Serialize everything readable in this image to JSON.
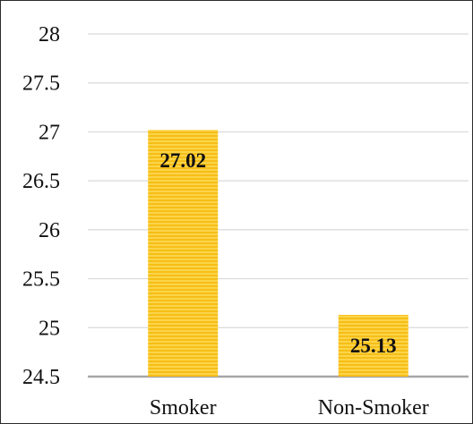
{
  "chart_data": {
    "type": "bar",
    "categories": [
      "Smoker",
      "Non-Smoker"
    ],
    "values": [
      27.02,
      25.13
    ],
    "data_labels": [
      "27.02",
      "25.13"
    ],
    "title": "",
    "xlabel": "",
    "ylabel": "",
    "ylim": [
      24.5,
      28
    ],
    "yticks": [
      24.5,
      25,
      25.5,
      26,
      26.5,
      27,
      27.5,
      28
    ],
    "ytick_labels": [
      "24.5",
      "25",
      "25.5",
      "26",
      "26.5",
      "27",
      "27.5",
      "28"
    ],
    "grid": true,
    "legend": "none",
    "bar_color": "#F7BE16",
    "bar_highlight_color": "#FBD44A",
    "gridline_color": "#D9D9D9",
    "axis_color": "#A6A6A6"
  }
}
